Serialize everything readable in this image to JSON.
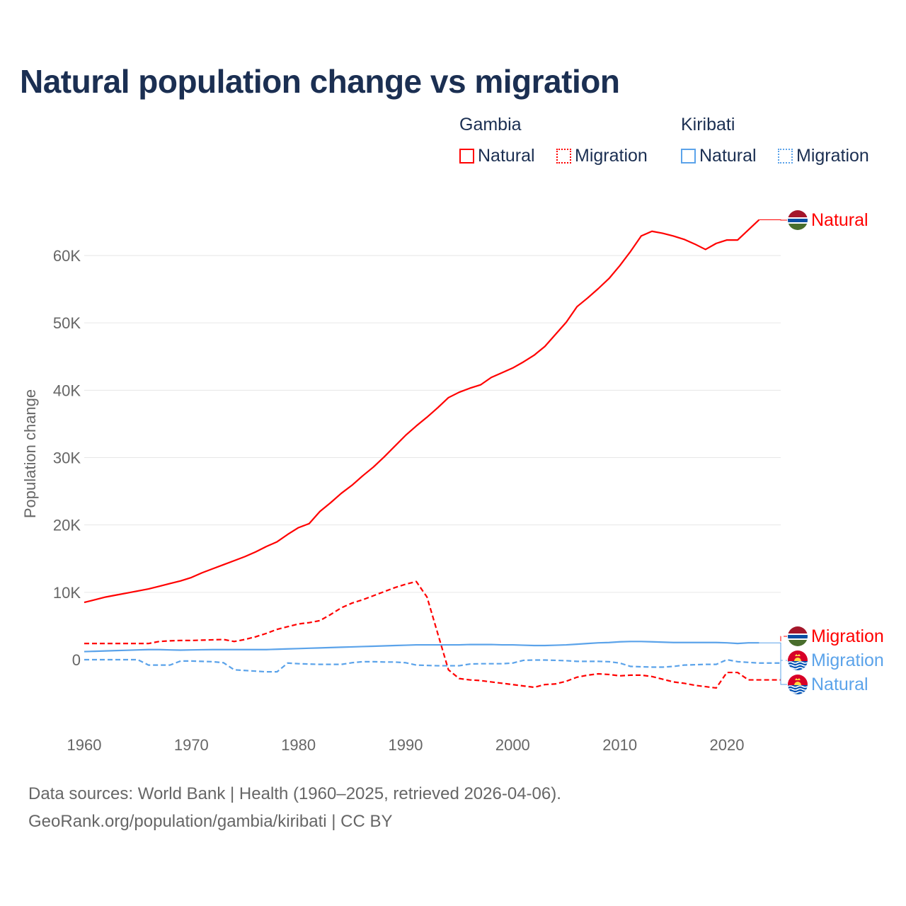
{
  "chart_data": {
    "type": "line",
    "title": "Natural population change vs migration",
    "ylabel": "Population change",
    "xlabel": "",
    "xlim": [
      1960,
      2025
    ],
    "ylim": [
      -10000,
      70000
    ],
    "x_ticks": [
      1960,
      1970,
      1980,
      1990,
      2000,
      2010,
      2020
    ],
    "x_tick_labels": [
      "1960",
      "1970",
      "1980",
      "1990",
      "2000",
      "2010",
      "2020"
    ],
    "y_ticks": [
      0,
      10000,
      20000,
      30000,
      40000,
      50000,
      60000
    ],
    "y_tick_labels": [
      "0",
      "10K",
      "20K",
      "30K",
      "40K",
      "50K",
      "60K"
    ],
    "grid": true,
    "legend": {
      "placement": "top-right",
      "groups": [
        {
          "name": "Gambia",
          "items": [
            "Natural",
            "Migration"
          ]
        },
        {
          "name": "Kiribati",
          "items": [
            "Natural",
            "Migration"
          ]
        }
      ]
    },
    "series": [
      {
        "name": "Natural",
        "country": "Gambia",
        "color": "#ff0000",
        "dash": "solid",
        "start": 1960,
        "values": [
          8500,
          8900,
          9300,
          9600,
          9900,
          10200,
          10500,
          10900,
          11300,
          11700,
          12200,
          12900,
          13500,
          14100,
          14700,
          15300,
          16000,
          16800,
          17500,
          18600,
          19600,
          20200,
          22000,
          23300,
          24700,
          25900,
          27300,
          28600,
          30100,
          31700,
          33300,
          34700,
          36000,
          37400,
          38900,
          39700,
          40300,
          40800,
          41900,
          42600,
          43300,
          44200,
          45200,
          46500,
          48300,
          50100,
          52400,
          53700,
          55100,
          56600,
          58500,
          60600,
          62900,
          63600,
          63300,
          62900,
          62400,
          61700,
          60900,
          61800,
          62300,
          62300,
          63800,
          65300
        ]
      },
      {
        "name": "Migration",
        "country": "Gambia",
        "color": "#ff0000",
        "dash": "dashed",
        "start": 1960,
        "values": [
          2400,
          2400,
          2400,
          2400,
          2400,
          2400,
          2400,
          2700,
          2800,
          2850,
          2850,
          2900,
          2950,
          3000,
          2700,
          3000,
          3400,
          3900,
          4500,
          4900,
          5300,
          5500,
          5800,
          6700,
          7700,
          8400,
          8900,
          9500,
          10100,
          10700,
          11200,
          11600,
          9300,
          3900,
          -1500,
          -2800,
          -3000,
          -3100,
          -3300,
          -3500,
          -3700,
          -3900,
          -4100,
          -3700,
          -3600,
          -3200,
          -2600,
          -2300,
          -2100,
          -2200,
          -2400,
          -2300,
          -2300,
          -2500,
          -2900,
          -3300,
          -3500,
          -3800,
          -4000,
          -4200,
          -1900,
          -1900,
          -3000,
          -3000,
          -3000,
          -3000
        ]
      },
      {
        "name": "Natural",
        "country": "Kiribati",
        "color": "#5ba3ea",
        "dash": "solid",
        "start": 1960,
        "values": [
          1200,
          1250,
          1300,
          1350,
          1400,
          1450,
          1500,
          1500,
          1450,
          1420,
          1450,
          1480,
          1500,
          1500,
          1500,
          1500,
          1500,
          1500,
          1550,
          1600,
          1650,
          1700,
          1750,
          1800,
          1850,
          1900,
          1950,
          2000,
          2050,
          2100,
          2150,
          2200,
          2200,
          2200,
          2200,
          2200,
          2250,
          2250,
          2250,
          2200,
          2200,
          2150,
          2100,
          2100,
          2150,
          2200,
          2300,
          2400,
          2500,
          2550,
          2650,
          2700,
          2700,
          2650,
          2600,
          2550,
          2550,
          2550,
          2550,
          2550,
          2500,
          2400,
          2500,
          2500
        ]
      },
      {
        "name": "Migration",
        "country": "Kiribati",
        "color": "#5ba3ea",
        "dash": "dashed",
        "start": 1960,
        "values": [
          0,
          0,
          0,
          0,
          0,
          0,
          -800,
          -800,
          -800,
          -200,
          -200,
          -250,
          -300,
          -450,
          -1500,
          -1600,
          -1700,
          -1800,
          -1800,
          -500,
          -600,
          -650,
          -700,
          -700,
          -700,
          -450,
          -300,
          -300,
          -350,
          -350,
          -450,
          -800,
          -850,
          -900,
          -900,
          -900,
          -650,
          -600,
          -600,
          -600,
          -500,
          -100,
          -50,
          -50,
          -100,
          -150,
          -250,
          -250,
          -250,
          -300,
          -500,
          -1000,
          -1050,
          -1100,
          -1100,
          -1000,
          -800,
          -750,
          -700,
          -700,
          0,
          -300,
          -400,
          -500,
          -500,
          -500
        ]
      }
    ],
    "end_labels": [
      "Natural",
      "Natural",
      "Migration",
      "Migration"
    ]
  },
  "footer": {
    "line1": "Data sources: World Bank | Health (1960–2025, retrieved 2026-04-06).",
    "line2": "GeoRank.org/population/gambia/kiribati | CC BY"
  }
}
